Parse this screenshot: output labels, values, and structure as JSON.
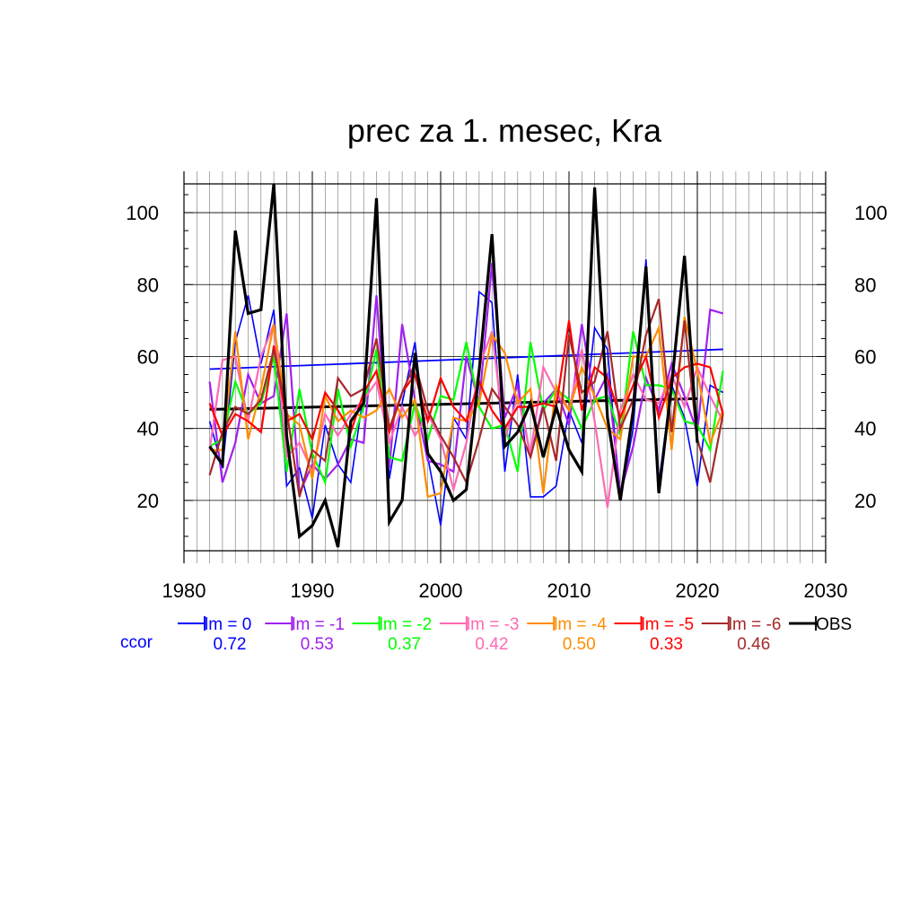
{
  "chart_data": {
    "type": "line",
    "title": "prec za 1. mesec, Kra",
    "xlabel": "",
    "ylabel": "",
    "xlim": [
      1980,
      2030
    ],
    "ylim": [
      6,
      108
    ],
    "x_ticks": [
      1980,
      1990,
      2000,
      2010,
      2020,
      2030
    ],
    "y_ticks": [
      20,
      40,
      60,
      80,
      100
    ],
    "x": [
      1982,
      1983,
      1984,
      1985,
      1986,
      1987,
      1988,
      1989,
      1990,
      1991,
      1992,
      1993,
      1994,
      1995,
      1996,
      1997,
      1998,
      1999,
      2000,
      2001,
      2002,
      2003,
      2004,
      2005,
      2006,
      2007,
      2008,
      2009,
      2010,
      2011,
      2012,
      2013,
      2014,
      2015,
      2016,
      2017,
      2018,
      2019,
      2020,
      2021,
      2022
    ],
    "series": [
      {
        "name": "lm = 0",
        "color": "#0000ff",
        "correlation": "0.72",
        "values": [
          42,
          29,
          64,
          77,
          58,
          73,
          24,
          29,
          15,
          41,
          30,
          25,
          50,
          103,
          26,
          47,
          64,
          32,
          13,
          43,
          37,
          78,
          75,
          28,
          55,
          21,
          21,
          24,
          45,
          36,
          68,
          62,
          20,
          40,
          87,
          25,
          52,
          43,
          24,
          52,
          50
        ]
      },
      {
        "name": "lm = -1",
        "color": "#a020f0",
        "correlation": "0.53",
        "values": [
          53,
          25,
          36,
          55,
          47,
          49,
          72,
          22,
          30,
          26,
          30,
          37,
          36,
          77,
          29,
          69,
          48,
          31,
          30,
          28,
          60,
          47,
          86,
          43,
          52,
          32,
          47,
          51,
          41,
          69,
          48,
          55,
          22,
          35,
          54,
          45,
          58,
          49,
          39,
          73,
          72
        ]
      },
      {
        "name": "lm = -2",
        "color": "#00ff00",
        "correlation": "0.37",
        "values": [
          35,
          37,
          53,
          44,
          47,
          60,
          28,
          51,
          33,
          25,
          51,
          35,
          46,
          62,
          32,
          31,
          47,
          37,
          49,
          48,
          64,
          46,
          40,
          41,
          28,
          64,
          45,
          51,
          48,
          40,
          48,
          49,
          38,
          67,
          52,
          52,
          51,
          42,
          41,
          34,
          56
        ]
      },
      {
        "name": "lm = -3",
        "color": "#ff69b4",
        "correlation": "0.42",
        "values": [
          34,
          59,
          60,
          42,
          60,
          69,
          32,
          36,
          28,
          44,
          38,
          44,
          48,
          53,
          36,
          46,
          38,
          44,
          37,
          23,
          36,
          57,
          67,
          37,
          49,
          33,
          57,
          50,
          45,
          62,
          42,
          18,
          45,
          55,
          48,
          47,
          55,
          46,
          57,
          49,
          42
        ]
      },
      {
        "name": "lm = -4",
        "color": "#ff8c00",
        "correlation": "0.50",
        "values": [
          34,
          34,
          67,
          37,
          51,
          69,
          44,
          41,
          26,
          49,
          42,
          45,
          43,
          45,
          51,
          43,
          48,
          21,
          22,
          43,
          42,
          47,
          66,
          61,
          47,
          51,
          22,
          52,
          45,
          57,
          49,
          40,
          37,
          60,
          60,
          68,
          34,
          71,
          56,
          36,
          45
        ]
      },
      {
        "name": "lm = -5",
        "color": "#ff0000",
        "correlation": "0.33",
        "values": [
          47,
          38,
          44,
          42,
          39,
          63,
          42,
          44,
          37,
          50,
          45,
          39,
          50,
          56,
          39,
          50,
          55,
          42,
          54,
          46,
          42,
          53,
          45,
          40,
          46,
          46,
          47,
          46,
          70,
          45,
          57,
          54,
          43,
          52,
          60,
          43,
          54,
          57,
          58,
          57,
          44
        ]
      },
      {
        "name": "lm = -6",
        "color": "#a52a2a",
        "correlation": "0.46",
        "values": [
          27,
          39,
          46,
          44,
          48,
          62,
          45,
          21,
          34,
          31,
          54,
          49,
          51,
          65,
          40,
          50,
          58,
          45,
          38,
          32,
          25,
          37,
          51,
          46,
          41,
          32,
          46,
          31,
          66,
          50,
          53,
          67,
          40,
          48,
          66,
          76,
          39,
          70,
          37,
          25,
          44
        ]
      },
      {
        "name": "OBS",
        "color": "#000000",
        "correlation": "",
        "values": [
          35,
          30,
          95,
          72,
          73,
          108,
          38,
          10,
          13,
          20,
          7,
          42,
          47,
          104,
          14,
          20,
          61,
          33,
          28,
          20,
          23,
          56,
          94,
          35,
          39,
          47,
          32,
          46,
          34,
          28,
          107,
          43,
          20,
          45,
          85,
          22,
          52,
          88,
          36,
          null,
          null
        ]
      }
    ],
    "trend_lines": [
      {
        "series": "lm = 0",
        "color": "#0000ff",
        "x": [
          1982,
          2022
        ],
        "y": [
          56.5,
          62.0
        ]
      },
      {
        "series": "OBS",
        "color": "#000000",
        "x": [
          1982,
          2020
        ],
        "y": [
          45.3,
          48.3
        ]
      }
    ],
    "grid": true,
    "legend_position": "bottom",
    "legend_label": "ccor"
  }
}
